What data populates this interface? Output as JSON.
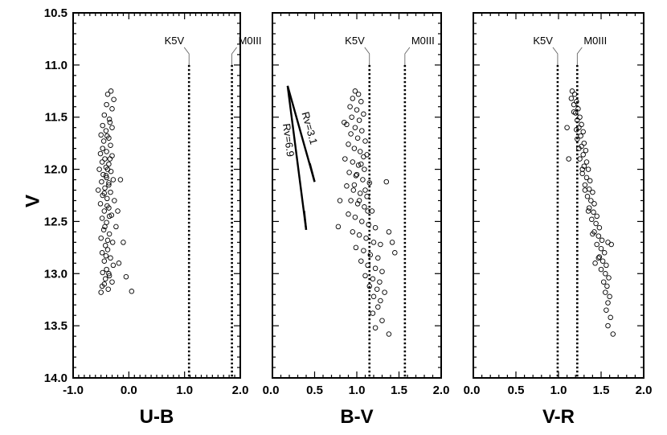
{
  "chart_data": {
    "type": "scatter",
    "ylabel": "V",
    "ylim": [
      14.0,
      10.5
    ],
    "yticks": [
      "10.5",
      "11.0",
      "11.5",
      "12.0",
      "12.5",
      "13.0",
      "13.5",
      "14.0"
    ],
    "panels": [
      {
        "xlabel": "U-B",
        "xlim": [
          -1.0,
          2.0
        ],
        "xticks": [
          "-1.0",
          "0.0",
          "1.0",
          "2.0"
        ],
        "xtick_values": [
          -1.0,
          0.0,
          1.0,
          2.0
        ],
        "reference_lines": [
          {
            "label": "K5V",
            "x": 1.08,
            "y_top": 11.0
          },
          {
            "label": "M0III",
            "x": 1.85,
            "y_top": 11.0
          }
        ],
        "points": [
          [
            -0.32,
            11.25
          ],
          [
            -0.38,
            11.28
          ],
          [
            -0.27,
            11.33
          ],
          [
            -0.4,
            11.38
          ],
          [
            -0.3,
            11.42
          ],
          [
            -0.44,
            11.48
          ],
          [
            -0.35,
            11.52
          ],
          [
            -0.47,
            11.58
          ],
          [
            -0.3,
            11.6
          ],
          [
            -0.41,
            11.63
          ],
          [
            -0.5,
            11.67
          ],
          [
            -0.36,
            11.7
          ],
          [
            -0.45,
            11.73
          ],
          [
            -0.33,
            11.77
          ],
          [
            -0.47,
            11.8
          ],
          [
            -0.4,
            11.83
          ],
          [
            -0.51,
            11.85
          ],
          [
            -0.3,
            11.87
          ],
          [
            -0.43,
            11.9
          ],
          [
            -0.48,
            11.93
          ],
          [
            -0.36,
            11.95
          ],
          [
            -0.41,
            11.98
          ],
          [
            -0.53,
            12.0
          ],
          [
            -0.32,
            12.02
          ],
          [
            -0.46,
            12.05
          ],
          [
            -0.4,
            12.08
          ],
          [
            -0.28,
            12.1
          ],
          [
            -0.49,
            12.12
          ],
          [
            -0.36,
            12.15
          ],
          [
            -0.43,
            12.18
          ],
          [
            -0.55,
            12.2
          ],
          [
            -0.33,
            12.22
          ],
          [
            -0.47,
            12.25
          ],
          [
            -0.39,
            12.28
          ],
          [
            -0.26,
            12.3
          ],
          [
            -0.51,
            12.33
          ],
          [
            -0.36,
            12.37
          ],
          [
            -0.44,
            12.4
          ],
          [
            -0.31,
            12.44
          ],
          [
            -0.48,
            12.47
          ],
          [
            -0.4,
            12.51
          ],
          [
            -0.23,
            12.55
          ],
          [
            -0.45,
            12.58
          ],
          [
            -0.35,
            12.62
          ],
          [
            -0.5,
            12.66
          ],
          [
            -0.29,
            12.7
          ],
          [
            -0.42,
            12.73
          ],
          [
            -0.38,
            12.77
          ],
          [
            -0.48,
            12.8
          ],
          [
            -0.33,
            12.85
          ],
          [
            -0.44,
            12.88
          ],
          [
            -0.28,
            12.92
          ],
          [
            -0.4,
            12.96
          ],
          [
            -0.47,
            12.99
          ],
          [
            -0.35,
            13.02
          ],
          [
            -0.42,
            13.05
          ],
          [
            -0.3,
            13.08
          ],
          [
            -0.48,
            13.12
          ],
          [
            -0.37,
            13.15
          ],
          [
            -0.5,
            13.18
          ],
          [
            -0.05,
            13.03
          ],
          [
            0.05,
            13.17
          ],
          [
            -0.18,
            12.9
          ],
          [
            -0.1,
            12.7
          ],
          [
            -0.2,
            12.4
          ],
          [
            -0.15,
            12.1
          ],
          [
            -0.34,
            11.9
          ],
          [
            -0.38,
            12.0
          ],
          [
            -0.41,
            12.06
          ],
          [
            -0.36,
            12.13
          ],
          [
            -0.44,
            12.23
          ],
          [
            -0.39,
            12.35
          ],
          [
            -0.35,
            12.45
          ],
          [
            -0.43,
            12.55
          ],
          [
            -0.38,
            12.68
          ],
          [
            -0.41,
            12.83
          ],
          [
            -0.36,
            13.0
          ],
          [
            -0.44,
            13.1
          ],
          [
            -0.39,
            11.68
          ],
          [
            -0.34,
            11.55
          ]
        ]
      },
      {
        "xlabel": "B-V",
        "xlim": [
          0.0,
          2.0
        ],
        "xticks": [
          "0.0",
          "0.5",
          "1.0",
          "1.5",
          "2.0"
        ],
        "xtick_values": [
          0.0,
          0.5,
          1.0,
          1.5,
          2.0
        ],
        "reference_lines": [
          {
            "label": "K5V",
            "x": 1.15,
            "y_top": 11.0
          },
          {
            "label": "M0III",
            "x": 1.57,
            "y_top": 11.0
          }
        ],
        "reddening_vectors": [
          {
            "label": "Rv=3.1",
            "from": [
              0.18,
              11.2
            ],
            "to": [
              0.5,
              12.12
            ]
          },
          {
            "label": "Rv=6.9",
            "from": [
              0.18,
              11.2
            ],
            "to": [
              0.4,
              12.58
            ]
          }
        ],
        "points": [
          [
            0.98,
            11.25
          ],
          [
            1.02,
            11.28
          ],
          [
            0.95,
            11.32
          ],
          [
            1.05,
            11.35
          ],
          [
            0.92,
            11.4
          ],
          [
            1.0,
            11.43
          ],
          [
            1.08,
            11.47
          ],
          [
            0.94,
            11.5
          ],
          [
            1.03,
            11.53
          ],
          [
            0.88,
            11.57
          ],
          [
            0.98,
            11.6
          ],
          [
            1.06,
            11.63
          ],
          [
            0.93,
            11.66
          ],
          [
            1.01,
            11.7
          ],
          [
            1.1,
            11.73
          ],
          [
            0.9,
            11.76
          ],
          [
            0.97,
            11.8
          ],
          [
            1.04,
            11.83
          ],
          [
            1.12,
            11.86
          ],
          [
            0.86,
            11.9
          ],
          [
            0.95,
            11.93
          ],
          [
            1.02,
            11.96
          ],
          [
            1.09,
            12.0
          ],
          [
            0.91,
            12.03
          ],
          [
            0.99,
            12.06
          ],
          [
            1.07,
            12.1
          ],
          [
            1.15,
            12.13
          ],
          [
            0.88,
            12.16
          ],
          [
            0.96,
            12.2
          ],
          [
            1.04,
            12.23
          ],
          [
            1.12,
            12.26
          ],
          [
            0.93,
            12.3
          ],
          [
            1.01,
            12.33
          ],
          [
            1.09,
            12.36
          ],
          [
            1.18,
            12.4
          ],
          [
            0.9,
            12.43
          ],
          [
            0.98,
            12.46
          ],
          [
            1.06,
            12.5
          ],
          [
            1.14,
            12.53
          ],
          [
            1.22,
            12.56
          ],
          [
            0.95,
            12.6
          ],
          [
            1.03,
            12.63
          ],
          [
            1.11,
            12.66
          ],
          [
            1.2,
            12.7
          ],
          [
            1.28,
            12.72
          ],
          [
            0.99,
            12.75
          ],
          [
            1.08,
            12.78
          ],
          [
            1.16,
            12.82
          ],
          [
            1.25,
            12.85
          ],
          [
            1.05,
            12.88
          ],
          [
            1.13,
            12.92
          ],
          [
            1.22,
            12.95
          ],
          [
            1.3,
            12.98
          ],
          [
            1.1,
            13.02
          ],
          [
            1.19,
            13.05
          ],
          [
            1.27,
            13.08
          ],
          [
            1.15,
            13.12
          ],
          [
            1.24,
            13.15
          ],
          [
            1.33,
            13.18
          ],
          [
            1.2,
            13.22
          ],
          [
            1.28,
            13.26
          ],
          [
            1.25,
            13.32
          ],
          [
            1.19,
            13.38
          ],
          [
            1.3,
            13.45
          ],
          [
            1.22,
            13.52
          ],
          [
            1.38,
            13.58
          ],
          [
            1.35,
            12.12
          ],
          [
            0.85,
            11.55
          ],
          [
            1.38,
            12.6
          ],
          [
            1.42,
            12.7
          ],
          [
            1.45,
            12.8
          ],
          [
            0.8,
            12.3
          ],
          [
            0.78,
            12.55
          ],
          [
            1.0,
            12.05
          ],
          [
            1.05,
            11.95
          ],
          [
            1.08,
            11.88
          ],
          [
            1.1,
            12.2
          ],
          [
            1.13,
            12.4
          ],
          [
            1.03,
            12.3
          ],
          [
            0.97,
            12.15
          ]
        ]
      },
      {
        "xlabel": "V-R",
        "xlim": [
          0.0,
          2.0
        ],
        "xticks": [
          "0.0",
          "0.5",
          "1.0",
          "1.5",
          "2.0"
        ],
        "xtick_values": [
          0.0,
          0.5,
          1.0,
          1.5,
          2.0
        ],
        "reference_lines": [
          {
            "label": "K5V",
            "x": 0.99,
            "y_top": 11.0
          },
          {
            "label": "M0III",
            "x": 1.22,
            "y_top": 11.0
          }
        ],
        "points": [
          [
            1.16,
            11.25
          ],
          [
            1.19,
            11.28
          ],
          [
            1.15,
            11.32
          ],
          [
            1.21,
            11.35
          ],
          [
            1.18,
            11.38
          ],
          [
            1.23,
            11.42
          ],
          [
            1.2,
            11.46
          ],
          [
            1.25,
            11.5
          ],
          [
            1.22,
            11.53
          ],
          [
            1.27,
            11.57
          ],
          [
            1.24,
            11.6
          ],
          [
            1.29,
            11.64
          ],
          [
            1.26,
            11.68
          ],
          [
            1.22,
            11.71
          ],
          [
            1.3,
            11.75
          ],
          [
            1.27,
            11.78
          ],
          [
            1.32,
            11.82
          ],
          [
            1.29,
            11.86
          ],
          [
            1.25,
            11.9
          ],
          [
            1.33,
            11.93
          ],
          [
            1.3,
            11.97
          ],
          [
            1.35,
            12.0
          ],
          [
            1.28,
            12.04
          ],
          [
            1.33,
            12.08
          ],
          [
            1.37,
            12.11
          ],
          [
            1.31,
            12.15
          ],
          [
            1.36,
            12.19
          ],
          [
            1.4,
            12.22
          ],
          [
            1.34,
            12.26
          ],
          [
            1.38,
            12.3
          ],
          [
            1.42,
            12.33
          ],
          [
            1.36,
            12.37
          ],
          [
            1.41,
            12.41
          ],
          [
            1.45,
            12.45
          ],
          [
            1.39,
            12.48
          ],
          [
            1.44,
            12.52
          ],
          [
            1.48,
            12.56
          ],
          [
            1.42,
            12.6
          ],
          [
            1.47,
            12.64
          ],
          [
            1.51,
            12.68
          ],
          [
            1.45,
            12.72
          ],
          [
            1.5,
            12.76
          ],
          [
            1.54,
            12.8
          ],
          [
            1.48,
            12.84
          ],
          [
            1.52,
            12.88
          ],
          [
            1.56,
            12.92
          ],
          [
            1.5,
            12.96
          ],
          [
            1.55,
            13.0
          ],
          [
            1.59,
            13.04
          ],
          [
            1.53,
            13.08
          ],
          [
            1.57,
            13.12
          ],
          [
            1.55,
            13.18
          ],
          [
            1.6,
            13.22
          ],
          [
            1.58,
            13.28
          ],
          [
            1.56,
            13.35
          ],
          [
            1.61,
            13.42
          ],
          [
            1.58,
            13.5
          ],
          [
            1.64,
            13.58
          ],
          [
            1.1,
            11.6
          ],
          [
            1.12,
            11.9
          ],
          [
            1.58,
            12.7
          ],
          [
            1.62,
            12.72
          ],
          [
            1.47,
            12.85
          ],
          [
            1.43,
            12.9
          ],
          [
            1.4,
            12.62
          ],
          [
            1.35,
            12.4
          ],
          [
            1.31,
            12.2
          ],
          [
            1.28,
            12.0
          ],
          [
            1.24,
            11.8
          ],
          [
            1.21,
            11.62
          ],
          [
            1.18,
            11.45
          ]
        ]
      }
    ]
  }
}
